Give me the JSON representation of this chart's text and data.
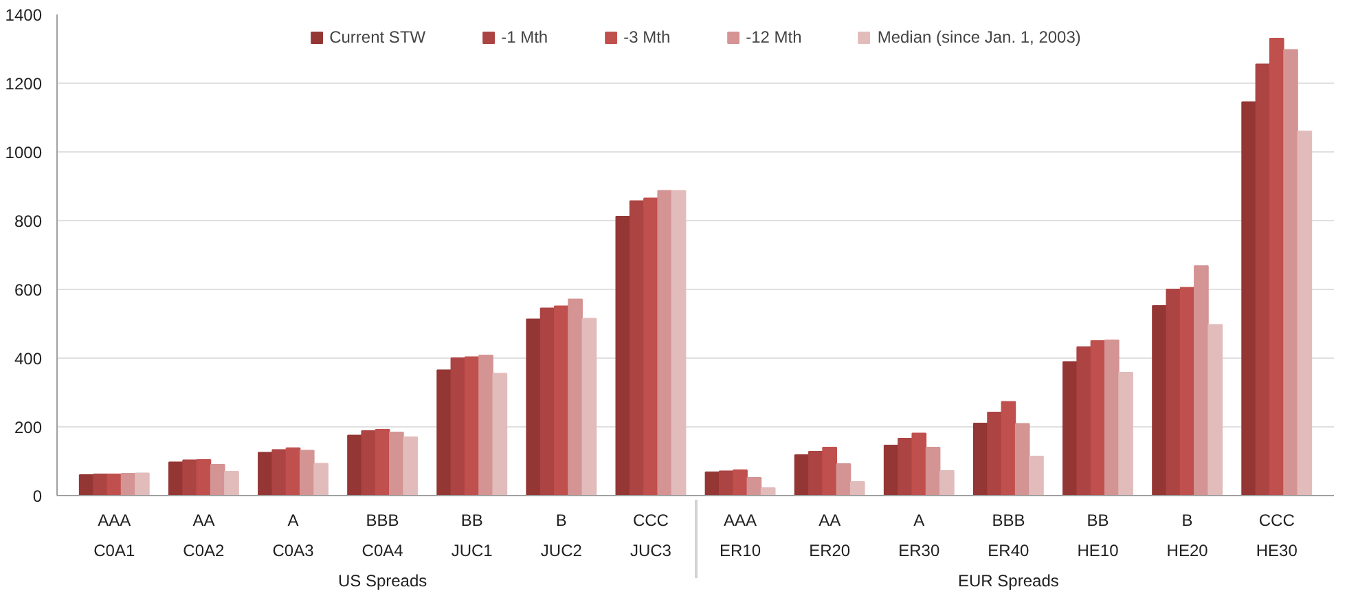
{
  "chart_data": {
    "type": "bar",
    "categories": [
      "AAA\nC0A1",
      "AA\nC0A2",
      "A\nC0A3",
      "BBB\nC0A4",
      "BB\nJUC1",
      "B\nJUC2",
      "CCC\nJUC3",
      "AAA\nER10",
      "AA\nER20",
      "A\nER30",
      "BBB\nER40",
      "BB\nHE10",
      "B\nHE20",
      "CCC\nHE30"
    ],
    "series": [
      {
        "name": "Current STW",
        "color": "#943634",
        "values": [
          60,
          97,
          125,
          175,
          365,
          513,
          812,
          68,
          118,
          146,
          210,
          389,
          552,
          1145
        ]
      },
      {
        "name": "-1 Mth",
        "color": "#ab4442",
        "values": [
          62,
          103,
          133,
          188,
          400,
          545,
          857,
          71,
          128,
          166,
          242,
          432,
          600,
          1255
        ]
      },
      {
        "name": "-3 Mth",
        "color": "#c0504d",
        "values": [
          62,
          104,
          138,
          192,
          403,
          551,
          865,
          74,
          140,
          181,
          273,
          450,
          605,
          1330
        ]
      },
      {
        "name": "-12 Mth",
        "color": "#d49493",
        "values": [
          64,
          90,
          131,
          184,
          408,
          571,
          887,
          52,
          92,
          140,
          209,
          452,
          668,
          1297
        ]
      },
      {
        "name": "Median (since Jan. 1, 2003)",
        "color": "#e2bcbb",
        "values": [
          65,
          70,
          93,
          170,
          355,
          515,
          887,
          22,
          40,
          72,
          114,
          358,
          497,
          1060
        ]
      }
    ],
    "annotations": [
      "US Spreads",
      "EUR Spreads"
    ],
    "ylim": [
      0,
      1400
    ],
    "yticks": [
      0,
      200,
      400,
      600,
      800,
      1000,
      1200,
      1400
    ],
    "grid": "y",
    "legend": "top"
  }
}
